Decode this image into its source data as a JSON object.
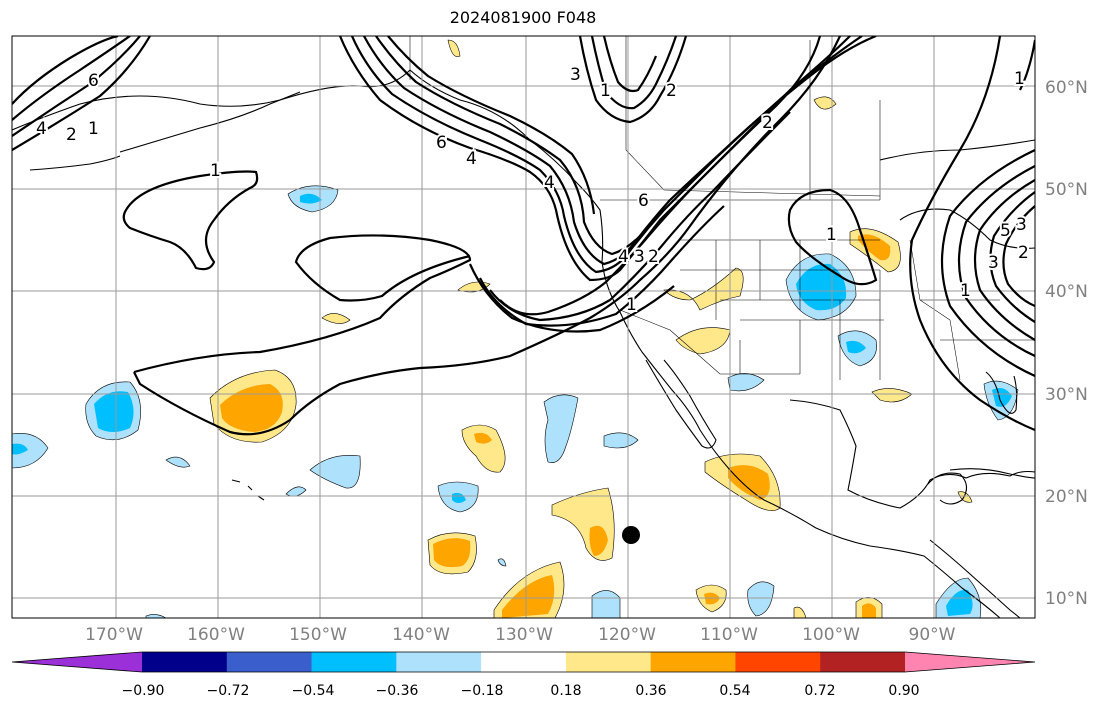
{
  "title": "2024081900 F048",
  "lon_labels": [
    "170°W",
    "160°W",
    "150°W",
    "140°W",
    "130°W",
    "120°W",
    "110°W",
    "100°W",
    "90°W"
  ],
  "lat_labels": [
    "60°N",
    "50°N",
    "40°N",
    "30°N",
    "20°N",
    "10°N"
  ],
  "contour_labels": [
    "1",
    "1",
    "2",
    "4",
    "6",
    "1",
    "2",
    "3",
    "4",
    "6",
    "1",
    "2",
    "3",
    "4",
    "6",
    "1",
    "2",
    "3",
    "5",
    "1",
    "1",
    "2",
    "3",
    "4"
  ],
  "colorbar": {
    "ticks": [
      "−0.90",
      "−0.72",
      "−0.54",
      "−0.36",
      "−0.18",
      "0.18",
      "0.36",
      "0.54",
      "0.72",
      "0.90"
    ],
    "colors": [
      "#9b30d9",
      "#00008b",
      "#3a5fcd",
      "#00bfff",
      "#aee1fc",
      "#ffffff",
      "#ffe88a",
      "#ffa500",
      "#ff4500",
      "#b22222",
      "#ff85b0"
    ]
  },
  "marker": "storm-position"
}
